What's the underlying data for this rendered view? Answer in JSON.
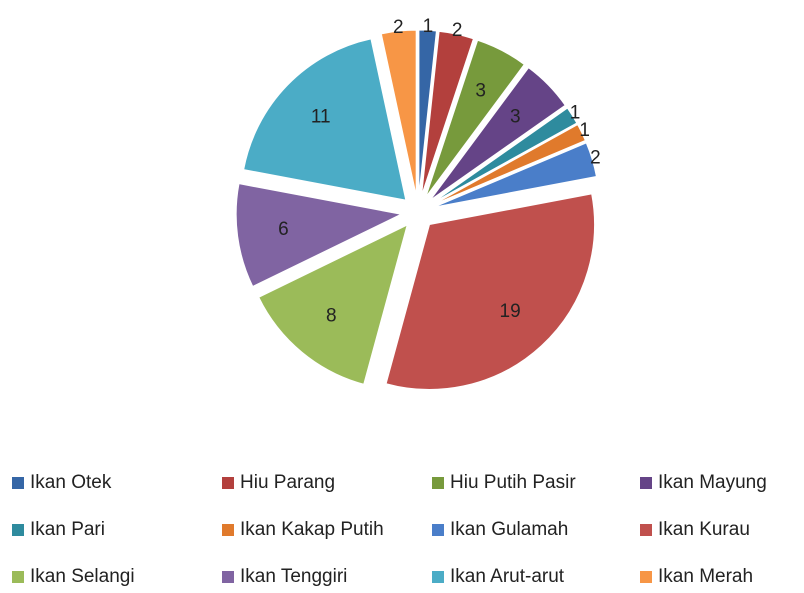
{
  "chart_data": {
    "type": "pie",
    "categories": [
      "Ikan Otek",
      "Hiu Parang",
      "Hiu Putih Pasir",
      "Ikan Mayung",
      "Ikan Pari",
      "Ikan Kakap Putih",
      "Ikan Gulamah",
      "Ikan Kurau",
      "Ikan Selangi",
      "Ikan Tenggiri",
      "Ikan Arut-arut",
      "Ikan Merah"
    ],
    "values": [
      1,
      2,
      3,
      3,
      1,
      1,
      2,
      19,
      8,
      6,
      11,
      2
    ],
    "colors": [
      "#3566a6",
      "#b3403d",
      "#779a3c",
      "#654487",
      "#2e8b9e",
      "#e07a2c",
      "#4a7ec9",
      "#c0504d",
      "#9bbb59",
      "#8064a2",
      "#4bacc6",
      "#f79646"
    ],
    "legend": "bottom"
  }
}
